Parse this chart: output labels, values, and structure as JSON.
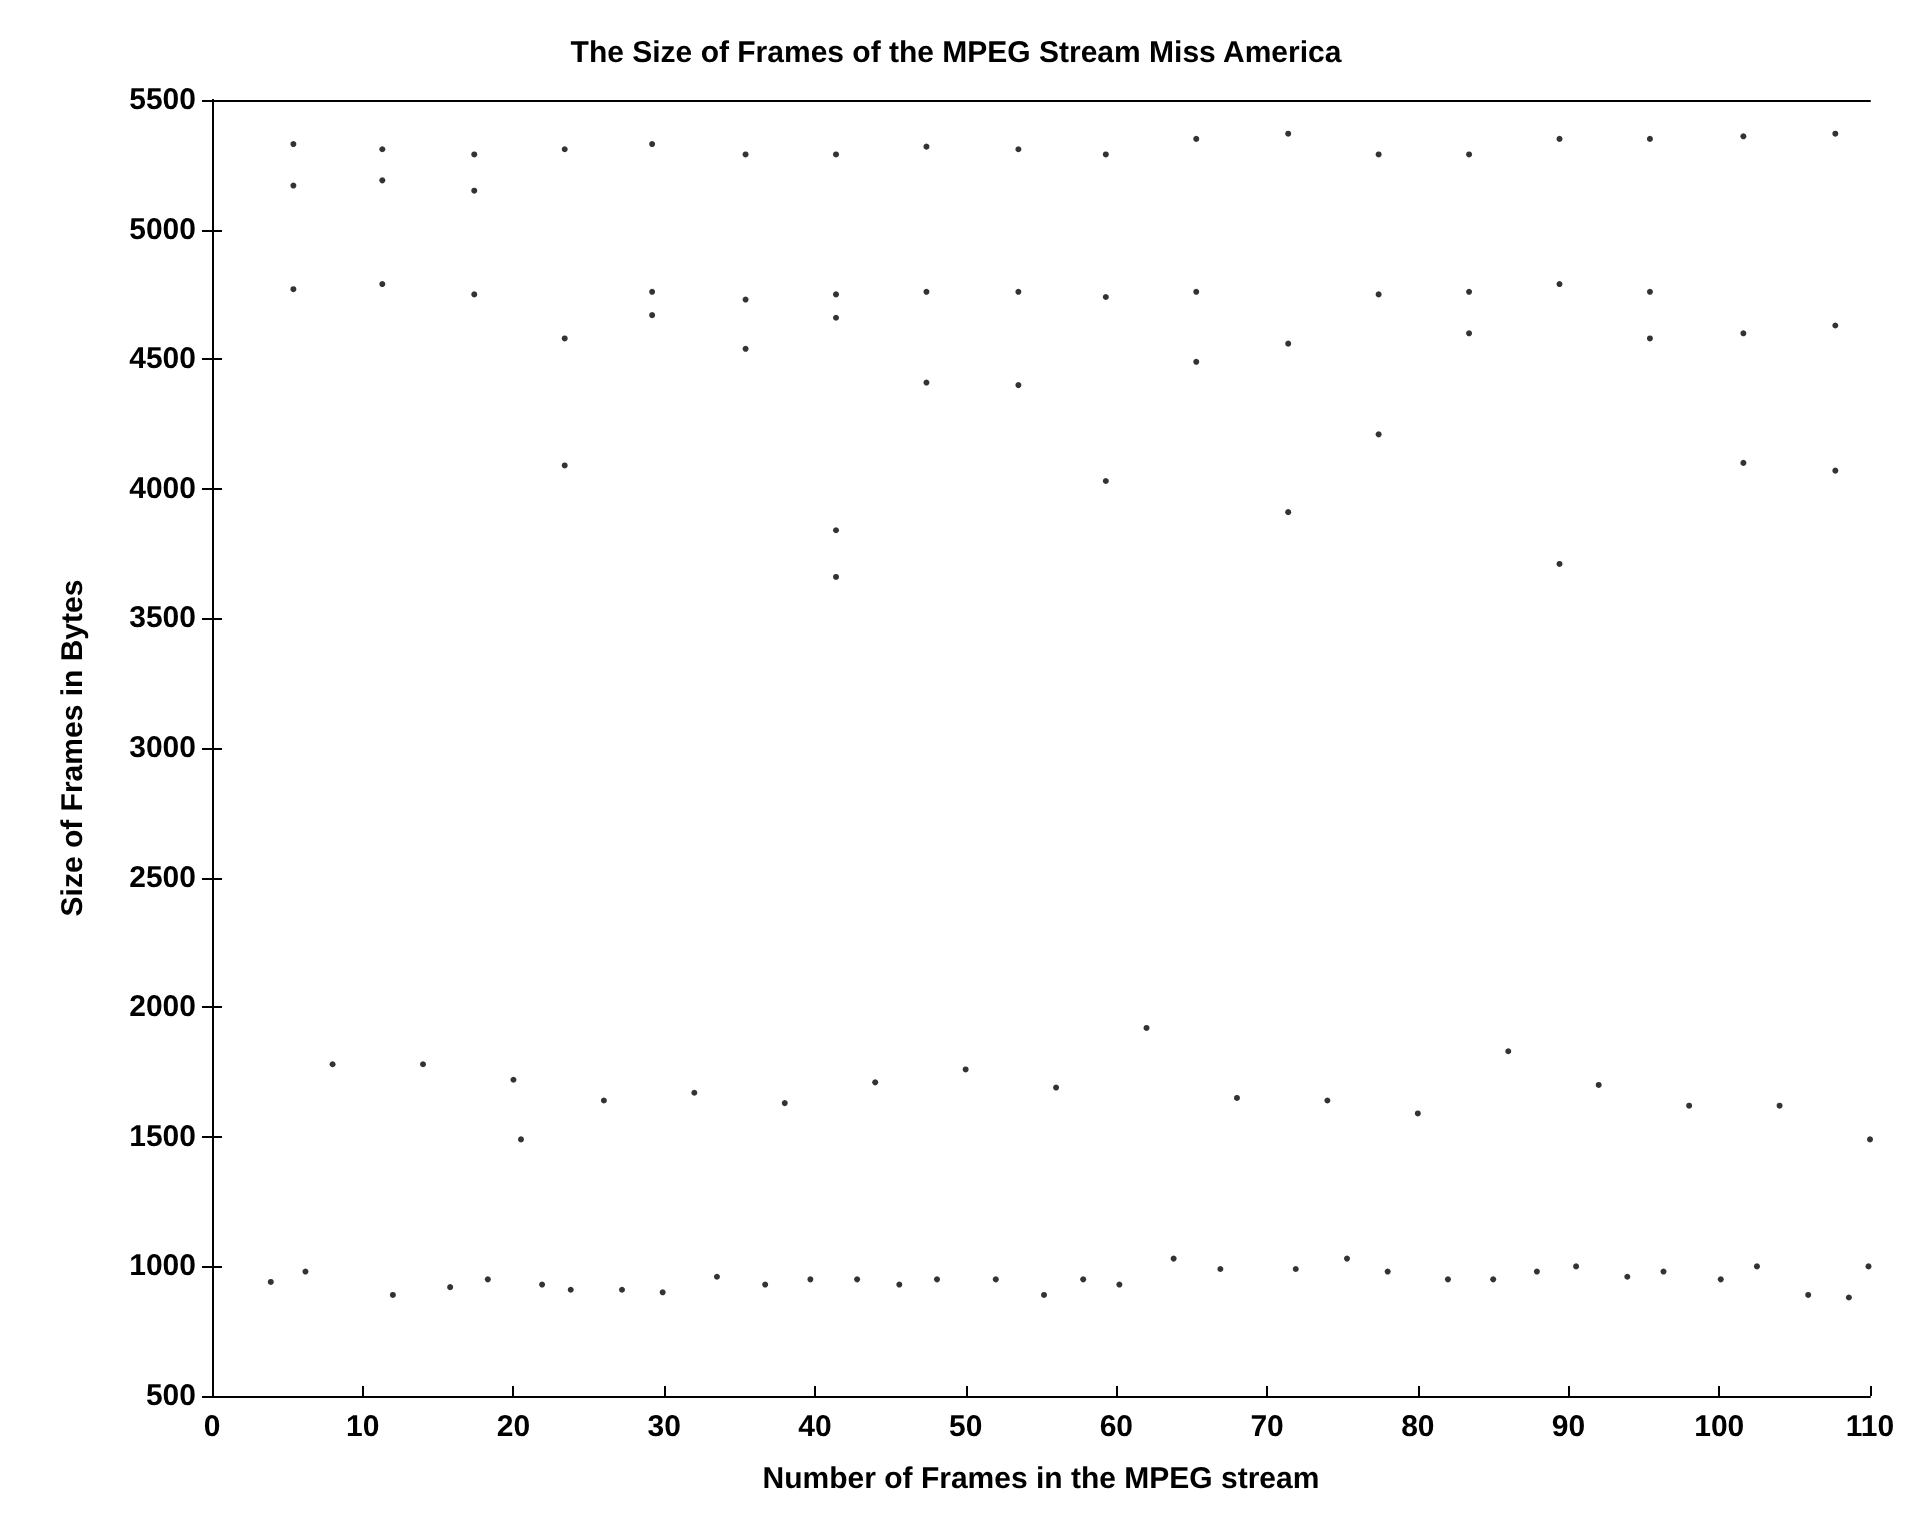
{
  "chart_data": {
    "type": "scatter",
    "title": "The Size of Frames of the MPEG Stream Miss America",
    "xlabel": "Number of Frames in the MPEG stream",
    "ylabel": "Size of Frames in Bytes",
    "xlim": [
      0,
      110
    ],
    "xticks": [
      0,
      10,
      20,
      30,
      40,
      50,
      60,
      70,
      80,
      90,
      100,
      110
    ],
    "ylim": [
      500,
      5500
    ],
    "yticks": [
      500,
      1000,
      1500,
      2000,
      2500,
      3000,
      3500,
      4000,
      4500,
      5000,
      5500
    ],
    "grid": false,
    "marker": "circle",
    "series": [
      {
        "color": "#000000",
        "x": [
          5.4,
          5.4,
          5.4,
          11.3,
          11.3,
          11.3,
          17.4,
          17.4,
          17.4,
          23.4,
          23.4,
          23.4,
          29.2,
          29.2,
          29.2,
          35.4,
          35.4,
          35.4,
          41.4,
          41.4,
          41.4,
          41.4,
          41.4,
          47.4,
          47.4,
          47.4,
          53.5,
          53.5,
          53.5,
          59.3,
          59.3,
          59.3,
          65.3,
          65.3,
          65.3,
          71.4,
          71.4,
          71.4,
          77.4,
          77.4,
          77.4,
          83.4,
          83.4,
          83.4,
          89.4,
          89.4,
          89.4,
          95.4,
          95.4,
          95.4,
          101.6,
          101.6,
          101.6,
          107.7,
          107.7,
          107.7
        ],
        "values": [
          5330,
          5170,
          4770,
          5310,
          5190,
          4790,
          5290,
          5150,
          4750,
          5310,
          4580,
          4090,
          5330,
          4760,
          4670,
          5290,
          4730,
          4540,
          5290,
          4750,
          4660,
          3840,
          3660,
          5320,
          4760,
          4410,
          5310,
          4760,
          4400,
          5290,
          4740,
          4030,
          5350,
          4760,
          4490,
          5370,
          4560,
          3910,
          5290,
          4750,
          4210,
          5290,
          4760,
          4600,
          5350,
          4790,
          3710,
          5350,
          4760,
          4580,
          5360,
          4600,
          4100,
          5370,
          4630,
          4070
        ]
      },
      {
        "color": "#000000",
        "x": [
          8,
          14,
          20,
          20.5,
          26,
          32,
          38,
          44,
          50,
          56,
          62,
          68,
          74,
          80,
          86,
          92,
          98,
          104,
          110
        ],
        "values": [
          1780,
          1780,
          1720,
          1490,
          1640,
          1670,
          1630,
          1710,
          1760,
          1690,
          1920,
          1650,
          1640,
          1590,
          1830,
          1700,
          1620,
          1620,
          1490
        ]
      },
      {
        "color": "#000000",
        "x": [
          3.9,
          6.2,
          12.0,
          15.8,
          18.3,
          21.9,
          23.8,
          27.2,
          29.9,
          33.5,
          36.7,
          39.7,
          42.8,
          45.6,
          48.1,
          52.0,
          55.2,
          57.8,
          60.2,
          63.8,
          66.9,
          71.9,
          75.3,
          78.0,
          82.0,
          85.0,
          87.9,
          90.5,
          93.9,
          96.3,
          100.1,
          102.5,
          105.9,
          108.6,
          109.9
        ],
        "values": [
          940,
          980,
          890,
          920,
          950,
          930,
          910,
          910,
          900,
          960,
          930,
          950,
          950,
          930,
          950,
          950,
          890,
          950,
          930,
          1030,
          990,
          990,
          1030,
          980,
          950,
          950,
          980,
          1000,
          960,
          980,
          950,
          1000,
          890,
          880,
          1000
        ]
      }
    ]
  }
}
